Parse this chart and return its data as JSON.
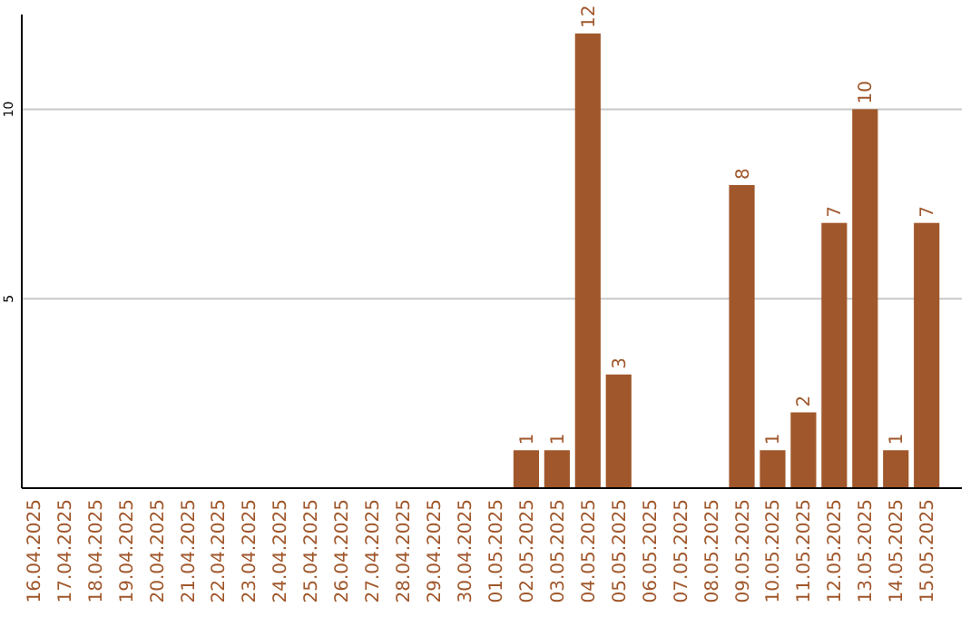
{
  "chart_data": {
    "type": "bar",
    "categories": [
      "16.04.2025",
      "17.04.2025",
      "18.04.2025",
      "19.04.2025",
      "20.04.2025",
      "21.04.2025",
      "22.04.2025",
      "23.04.2025",
      "24.04.2025",
      "25.04.2025",
      "26.04.2025",
      "27.04.2025",
      "28.04.2025",
      "29.04.2025",
      "30.04.2025",
      "01.05.2025",
      "02.05.2025",
      "03.05.2025",
      "04.05.2025",
      "05.05.2025",
      "06.05.2025",
      "07.05.2025",
      "08.05.2025",
      "09.05.2025",
      "10.05.2025",
      "11.05.2025",
      "12.05.2025",
      "13.05.2025",
      "14.05.2025",
      "15.05.2025"
    ],
    "values": [
      0,
      0,
      0,
      0,
      0,
      0,
      0,
      0,
      0,
      0,
      0,
      0,
      0,
      0,
      0,
      0,
      1,
      1,
      12,
      3,
      0,
      0,
      0,
      8,
      1,
      2,
      7,
      10,
      1,
      7
    ],
    "value_labels": [
      null,
      null,
      null,
      null,
      null,
      null,
      null,
      null,
      null,
      null,
      null,
      null,
      null,
      null,
      null,
      null,
      "1",
      "1",
      "12",
      "3",
      null,
      null,
      null,
      "8",
      "1",
      "2",
      "7",
      "10",
      "1",
      "7"
    ],
    "color": "#a0572b",
    "ylim": [
      0,
      12.5
    ],
    "yticks": [
      5,
      10
    ],
    "grid": "y"
  }
}
